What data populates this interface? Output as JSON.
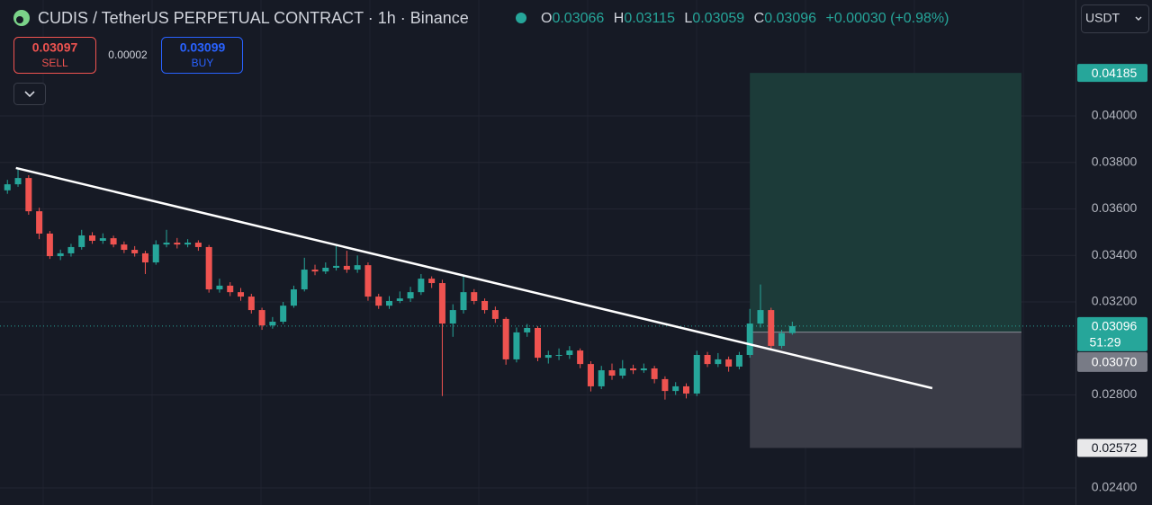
{
  "chart_data": {
    "type": "candlestick",
    "title": "CUDIS / TetherUS PERPETUAL CONTRACT · 1h · Binance",
    "ohlc_header": {
      "o_label": "O",
      "o": "0.03066",
      "h_label": "H",
      "h": "0.03115",
      "l_label": "L",
      "l": "0.03059",
      "c_label": "C",
      "c": "0.03096",
      "change": "+0.00030 (+0.98%)"
    },
    "trade_panel": {
      "sell_price": "0.03097",
      "sell_label": "SELL",
      "spread": "0.00002",
      "buy_price": "0.03099",
      "buy_label": "BUY"
    },
    "currency": "USDT",
    "up_color": "#26a69a",
    "down_color": "#ef5350",
    "grid": true,
    "xlim": [
      -0.7,
      100.7
    ],
    "ylim": [
      0.023266,
      0.044986
    ],
    "yticks": [
      {
        "value": 0.024,
        "label": "0.02400"
      },
      {
        "value": 0.028,
        "label": "0.02800"
      },
      {
        "value": 0.032,
        "label": "0.03200"
      },
      {
        "value": 0.034,
        "label": "0.03400"
      },
      {
        "value": 0.036,
        "label": "0.03600"
      },
      {
        "value": 0.038,
        "label": "0.03800"
      },
      {
        "value": 0.04,
        "label": "0.04000"
      }
    ],
    "last_price": 0.03096,
    "countdown": "51:29",
    "position": {
      "x_start": 70,
      "x_end": 95.6,
      "entry": {
        "value": 0.0307,
        "label": "0.03070"
      },
      "target": 0.04185,
      "stop": 0.02572
    },
    "trendline": {
      "x": [
        0.8,
        87.2
      ],
      "y": [
        0.03776,
        0.02829
      ]
    },
    "candles": [
      [
        0.0368,
        0.03725,
        0.03665,
        0.03706
      ],
      [
        0.03706,
        0.03776,
        0.03695,
        0.03733
      ],
      [
        0.03733,
        0.03745,
        0.03575,
        0.0359
      ],
      [
        0.0359,
        0.03605,
        0.0347,
        0.03494
      ],
      [
        0.03494,
        0.03505,
        0.03385,
        0.03397
      ],
      [
        0.03397,
        0.03425,
        0.0338,
        0.03409
      ],
      [
        0.03409,
        0.0345,
        0.03395,
        0.03436
      ],
      [
        0.03436,
        0.0351,
        0.03425,
        0.03486
      ],
      [
        0.03486,
        0.035,
        0.0345,
        0.03463
      ],
      [
        0.03463,
        0.03495,
        0.0345,
        0.03474
      ],
      [
        0.03474,
        0.03485,
        0.03435,
        0.03447
      ],
      [
        0.03447,
        0.0346,
        0.0341,
        0.03424
      ],
      [
        0.03424,
        0.0344,
        0.03395,
        0.03409
      ],
      [
        0.03409,
        0.0342,
        0.0332,
        0.0337
      ],
      [
        0.0337,
        0.03465,
        0.0336,
        0.03447
      ],
      [
        0.03447,
        0.0351,
        0.03435,
        0.03455
      ],
      [
        0.03455,
        0.03475,
        0.0343,
        0.03447
      ],
      [
        0.03447,
        0.0347,
        0.03435,
        0.03455
      ],
      [
        0.03455,
        0.03465,
        0.0342,
        0.03436
      ],
      [
        0.03436,
        0.03445,
        0.0324,
        0.03254
      ],
      [
        0.03254,
        0.033,
        0.0324,
        0.0327
      ],
      [
        0.0327,
        0.03285,
        0.03225,
        0.03242
      ],
      [
        0.03242,
        0.0326,
        0.03205,
        0.03223
      ],
      [
        0.03223,
        0.03235,
        0.0315,
        0.03165
      ],
      [
        0.03165,
        0.03175,
        0.0308,
        0.03099
      ],
      [
        0.03099,
        0.03135,
        0.03085,
        0.03115
      ],
      [
        0.03115,
        0.032,
        0.03105,
        0.03184
      ],
      [
        0.03184,
        0.0327,
        0.03175,
        0.03254
      ],
      [
        0.03254,
        0.0339,
        0.03245,
        0.03339
      ],
      [
        0.03339,
        0.0336,
        0.03315,
        0.03331
      ],
      [
        0.03331,
        0.0337,
        0.0332,
        0.03347
      ],
      [
        0.03347,
        0.0344,
        0.03335,
        0.03355
      ],
      [
        0.03355,
        0.0342,
        0.03325,
        0.03339
      ],
      [
        0.03339,
        0.034,
        0.03325,
        0.03358
      ],
      [
        0.03358,
        0.0337,
        0.03205,
        0.03223
      ],
      [
        0.03223,
        0.03235,
        0.0317,
        0.03184
      ],
      [
        0.03184,
        0.03225,
        0.0317,
        0.03204
      ],
      [
        0.03204,
        0.03245,
        0.03195,
        0.03215
      ],
      [
        0.03215,
        0.03265,
        0.032,
        0.03242
      ],
      [
        0.03242,
        0.0332,
        0.0323,
        0.033
      ],
      [
        0.033,
        0.0331,
        0.0326,
        0.03281
      ],
      [
        0.03281,
        0.03295,
        0.02795,
        0.03107
      ],
      [
        0.03107,
        0.0319,
        0.0305,
        0.03165
      ],
      [
        0.03165,
        0.0331,
        0.0315,
        0.03242
      ],
      [
        0.03242,
        0.03255,
        0.0319,
        0.03204
      ],
      [
        0.03204,
        0.03215,
        0.0315,
        0.03165
      ],
      [
        0.03165,
        0.0318,
        0.0311,
        0.03127
      ],
      [
        0.03127,
        0.03135,
        0.0293,
        0.02953
      ],
      [
        0.02953,
        0.0309,
        0.0294,
        0.03069
      ],
      [
        0.03069,
        0.03105,
        0.0305,
        0.03088
      ],
      [
        0.03088,
        0.03095,
        0.02945,
        0.0296
      ],
      [
        0.0296,
        0.0299,
        0.02935,
        0.02972
      ],
      [
        0.02972,
        0.03,
        0.0295,
        0.02972
      ],
      [
        0.02972,
        0.0301,
        0.02955,
        0.02991
      ],
      [
        0.02991,
        0.03,
        0.02915,
        0.02933
      ],
      [
        0.02933,
        0.02945,
        0.02815,
        0.02837
      ],
      [
        0.02837,
        0.02925,
        0.02825,
        0.02906
      ],
      [
        0.02906,
        0.02935,
        0.02865,
        0.02883
      ],
      [
        0.02883,
        0.0295,
        0.0287,
        0.02914
      ],
      [
        0.02914,
        0.0293,
        0.0289,
        0.02906
      ],
      [
        0.02906,
        0.02935,
        0.02895,
        0.02914
      ],
      [
        0.02914,
        0.02925,
        0.0285,
        0.02868
      ],
      [
        0.02868,
        0.0288,
        0.0278,
        0.02817
      ],
      [
        0.02817,
        0.02855,
        0.028,
        0.02837
      ],
      [
        0.02837,
        0.0285,
        0.02785,
        0.02806
      ],
      [
        0.02806,
        0.0299,
        0.02795,
        0.02972
      ],
      [
        0.02972,
        0.02985,
        0.0292,
        0.02933
      ],
      [
        0.02933,
        0.0298,
        0.0292,
        0.02953
      ],
      [
        0.02953,
        0.02965,
        0.029,
        0.02922
      ],
      [
        0.02922,
        0.02985,
        0.0291,
        0.02972
      ],
      [
        0.02972,
        0.0317,
        0.0296,
        0.03107
      ],
      [
        0.03107,
        0.03275,
        0.0309,
        0.03165
      ],
      [
        0.03165,
        0.03175,
        0.02995,
        0.03011
      ],
      [
        0.03011,
        0.0308,
        0.03,
        0.03066
      ],
      [
        0.03066,
        0.03115,
        0.03059,
        0.03096
      ]
    ]
  }
}
